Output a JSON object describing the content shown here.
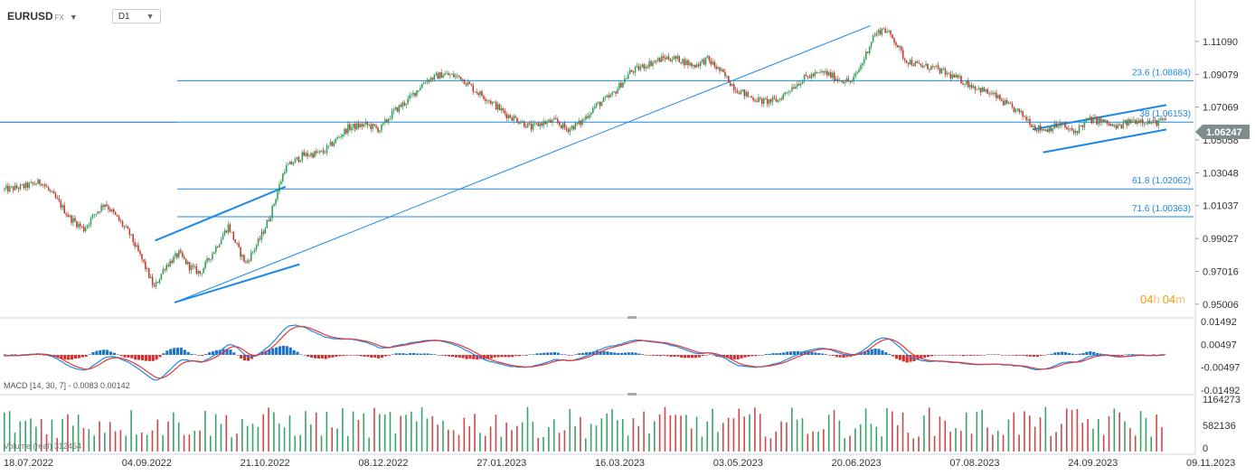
{
  "toolbar": {
    "symbol": "EURUSD",
    "market": "FX",
    "timeframe": "D1",
    "caret": "▼"
  },
  "countdown": {
    "h": "04",
    "h_unit": "h",
    "m": "04",
    "m_unit": "m"
  },
  "colors": {
    "bull": "#2e9e5b",
    "bear": "#c0392b",
    "line": "#1e88e5",
    "macd": "#1e88e5",
    "signal": "#e53935",
    "hist_pos": "#1e73c8",
    "hist_neg": "#d32f2f",
    "price_tag": "#7f8c8d"
  },
  "chart_data": {
    "type": "candlestick",
    "price_axis": {
      "ylim": [
        0.945,
        1.123
      ],
      "ticks": [
        "1.11090",
        "1.09079",
        "1.07069",
        "1.05058",
        "1.03048",
        "1.01037",
        "0.99027",
        "0.97016",
        "0.95006"
      ]
    },
    "time_axis": {
      "labels": [
        "18.07.2022",
        "04.09.2022",
        "21.10.2022",
        "08.12.2022",
        "27.01.2023",
        "16.03.2023",
        "03.05.2023",
        "20.06.2023",
        "07.08.2023",
        "24.09.2023",
        "09.11.2023"
      ]
    },
    "current_price": "1.06247",
    "price_path": [
      [
        0,
        1.02
      ],
      [
        12,
        1.022
      ],
      [
        22,
        1.025
      ],
      [
        32,
        1.012
      ],
      [
        38,
        1.003
      ],
      [
        46,
        0.996
      ],
      [
        52,
        1.005
      ],
      [
        58,
        1.012
      ],
      [
        64,
        1.004
      ],
      [
        72,
        0.993
      ],
      [
        80,
        0.975
      ],
      [
        86,
        0.96
      ],
      [
        92,
        0.973
      ],
      [
        100,
        0.981
      ],
      [
        106,
        0.973
      ],
      [
        112,
        0.969
      ],
      [
        120,
        0.983
      ],
      [
        128,
        0.998
      ],
      [
        134,
        0.983
      ],
      [
        138,
        0.975
      ],
      [
        146,
        0.99
      ],
      [
        152,
        1.005
      ],
      [
        160,
        1.033
      ],
      [
        170,
        1.041
      ],
      [
        182,
        1.043
      ],
      [
        196,
        1.058
      ],
      [
        206,
        1.06
      ],
      [
        214,
        1.057
      ],
      [
        222,
        1.068
      ],
      [
        230,
        1.075
      ],
      [
        240,
        1.087
      ],
      [
        250,
        1.091
      ],
      [
        260,
        1.089
      ],
      [
        268,
        1.081
      ],
      [
        276,
        1.075
      ],
      [
        286,
        1.066
      ],
      [
        294,
        1.062
      ],
      [
        300,
        1.058
      ],
      [
        306,
        1.061
      ],
      [
        314,
        1.062
      ],
      [
        320,
        1.057
      ],
      [
        328,
        1.061
      ],
      [
        336,
        1.071
      ],
      [
        346,
        1.078
      ],
      [
        356,
        1.092
      ],
      [
        366,
        1.097
      ],
      [
        376,
        1.101
      ],
      [
        384,
        1.1
      ],
      [
        392,
        1.096
      ],
      [
        400,
        1.1
      ],
      [
        408,
        1.092
      ],
      [
        416,
        1.082
      ],
      [
        424,
        1.077
      ],
      [
        432,
        1.074
      ],
      [
        440,
        1.075
      ],
      [
        448,
        1.083
      ],
      [
        456,
        1.089
      ],
      [
        466,
        1.092
      ],
      [
        474,
        1.088
      ],
      [
        482,
        1.086
      ],
      [
        488,
        1.098
      ],
      [
        494,
        1.114
      ],
      [
        500,
        1.119
      ],
      [
        506,
        1.112
      ],
      [
        512,
        1.1
      ],
      [
        520,
        1.096
      ],
      [
        528,
        1.095
      ],
      [
        536,
        1.091
      ],
      [
        546,
        1.086
      ],
      [
        556,
        1.081
      ],
      [
        564,
        1.077
      ],
      [
        570,
        1.072
      ],
      [
        576,
        1.068
      ],
      [
        582,
        1.063
      ],
      [
        586,
        1.058
      ],
      [
        592,
        1.057
      ],
      [
        600,
        1.06
      ],
      [
        608,
        1.055
      ],
      [
        616,
        1.063
      ],
      [
        624,
        1.062
      ],
      [
        632,
        1.058
      ],
      [
        640,
        1.062
      ],
      [
        646,
        1.063
      ],
      [
        652,
        1.061
      ],
      [
        660,
        1.06247
      ]
    ],
    "candle_count": 660,
    "fib_levels": [
      {
        "label": "23.6 (1.08684)",
        "price": 1.08684
      },
      {
        "label": "38 (1.06153)",
        "price": 1.06153
      },
      {
        "label": "61.8 (1.02062)",
        "price": 1.02062
      },
      {
        "label": "71.6 (1.00363)",
        "price": 1.00363
      }
    ],
    "trendlines": [
      {
        "from": [
          97,
          0.9511
        ],
        "to": [
          492,
          1.1205
        ],
        "width": 1
      },
      {
        "from": [
          86,
          0.989
        ],
        "to": [
          160,
          1.022
        ],
        "width": 2
      },
      {
        "from": [
          97,
          0.9511
        ],
        "to": [
          168,
          0.9745
        ],
        "width": 2
      },
      {
        "from": [
          590,
          1.043
        ],
        "to": [
          660,
          1.057
        ],
        "width": 2
      },
      {
        "from": [
          584,
          1.057
        ],
        "to": [
          660,
          1.072
        ],
        "width": 2
      }
    ],
    "macd": {
      "label": "MACD [14, 30, 7] - 0.0083 0.00142",
      "ylim": [
        -0.01492,
        0.01492
      ],
      "ticks": [
        "0.01492",
        "0.00497",
        "-0.00497",
        "-0.01492"
      ]
    },
    "volume": {
      "label": "Volume (real) 312464",
      "ylim": [
        0,
        1164273
      ],
      "ticks": [
        "1164273",
        "582136",
        "0"
      ]
    }
  }
}
